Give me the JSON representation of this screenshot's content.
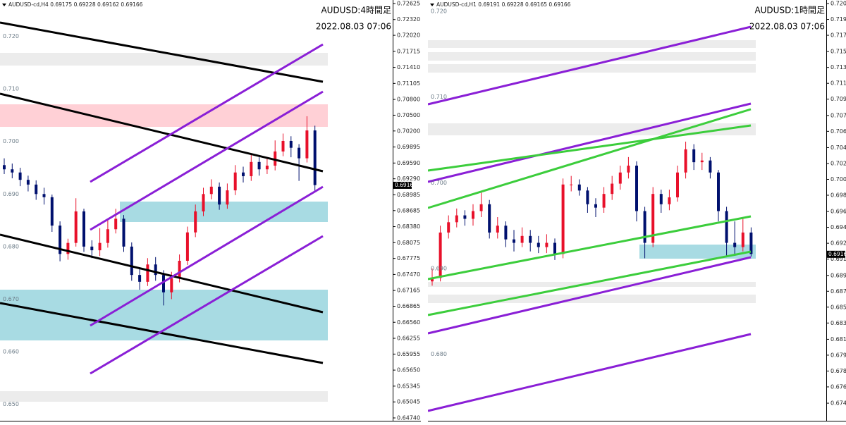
{
  "chart_data": [
    {
      "type": "candlestick",
      "header": "AUDUSD-cd,H4  0.69175 0.69228 0.69162 0.69166",
      "title": "AUDUSD:4時間足",
      "subtitle": "2022.08.03 07:06",
      "ylim": [
        0.64686,
        0.72665
      ],
      "yticks": [
        0.72625,
        {
          "value": 0.7232,
          "label": "0.72320"
        },
        {
          "value": 0.7202,
          "label": "0.72020"
        },
        0.71715,
        {
          "value": 0.7141,
          "label": "0.71410"
        },
        0.71105,
        {
          "value": 0.708,
          "label": "0.70800"
        },
        {
          "value": 0.705,
          "label": "0.70500"
        },
        {
          "value": 0.702,
          "label": "0.70200"
        },
        0.69895,
        {
          "value": 0.6959,
          "label": "0.69590"
        },
        {
          "value": 0.6929,
          "label": "0.69290"
        },
        0.68985,
        0.68685,
        {
          "value": 0.6838,
          "label": "0.68380"
        },
        0.68075,
        0.67775,
        {
          "value": 0.6747,
          "label": "0.67470"
        },
        0.67165,
        0.66865,
        {
          "value": 0.6656,
          "label": "0.66560"
        },
        0.66255,
        0.65955,
        {
          "value": 0.6565,
          "label": "0.65650"
        },
        0.65345,
        0.65045,
        {
          "value": 0.6474,
          "label": "0.64740"
        }
      ],
      "levels": [
        {
          "value": 0.72,
          "label": "0.720"
        },
        {
          "value": 0.71,
          "label": "0.710"
        },
        {
          "value": 0.7,
          "label": "0.700"
        },
        {
          "value": 0.69,
          "label": "0.690"
        },
        {
          "value": 0.68,
          "label": "0.680"
        },
        {
          "value": 0.67,
          "label": "0.670"
        },
        {
          "value": 0.66,
          "label": "0.660"
        },
        {
          "value": 0.65,
          "label": "0.650"
        }
      ],
      "last_price": 0.69166,
      "up_color": "#e8102a",
      "down_color": "#00106e",
      "open": [
        0.6955,
        0.6947,
        0.6941,
        0.6927,
        0.6918,
        0.69,
        0.6894,
        0.684,
        0.6786,
        0.6807,
        0.6867,
        0.68,
        0.6793,
        0.6807,
        0.6833,
        0.6853,
        0.68,
        0.6746,
        0.6733,
        0.6766,
        0.6746,
        0.6713,
        0.674,
        0.6773,
        0.6827,
        0.6867,
        0.69,
        0.6914,
        0.688,
        0.6907,
        0.6941,
        0.6934,
        0.6961,
        0.6947,
        0.6954,
        0.6981,
        0.7001,
        0.6988,
        0.6968,
        0.7021
      ],
      "high": [
        0.6968,
        0.6958,
        0.695,
        0.6935,
        0.6926,
        0.6912,
        0.6899,
        0.6848,
        0.6815,
        0.6892,
        0.6872,
        0.6812,
        0.6835,
        0.685,
        0.6872,
        0.686,
        0.6808,
        0.676,
        0.6778,
        0.678,
        0.6755,
        0.6752,
        0.6785,
        0.6838,
        0.688,
        0.6912,
        0.6928,
        0.6922,
        0.692,
        0.6955,
        0.6952,
        0.6975,
        0.697,
        0.6968,
        0.7002,
        0.7015,
        0.701,
        0.6995,
        0.7048,
        0.703
      ],
      "low": [
        0.6938,
        0.693,
        0.6915,
        0.6905,
        0.6889,
        0.688,
        0.6828,
        0.6772,
        0.6775,
        0.68,
        0.679,
        0.6778,
        0.6782,
        0.6798,
        0.6825,
        0.679,
        0.6735,
        0.6718,
        0.6725,
        0.6735,
        0.6688,
        0.67,
        0.6732,
        0.6765,
        0.6818,
        0.6858,
        0.689,
        0.687,
        0.6872,
        0.6898,
        0.6922,
        0.6925,
        0.6935,
        0.6938,
        0.6945,
        0.6972,
        0.697,
        0.6925,
        0.696,
        0.6905
      ],
      "close": [
        0.6947,
        0.6941,
        0.6927,
        0.6918,
        0.69,
        0.6894,
        0.684,
        0.6786,
        0.6807,
        0.6867,
        0.68,
        0.6793,
        0.6807,
        0.6833,
        0.6853,
        0.68,
        0.6746,
        0.6733,
        0.6766,
        0.6746,
        0.6713,
        0.674,
        0.6773,
        0.6827,
        0.6867,
        0.69,
        0.6914,
        0.688,
        0.6907,
        0.6941,
        0.6934,
        0.6961,
        0.6947,
        0.6954,
        0.6981,
        0.7001,
        0.6988,
        0.6968,
        0.7021,
        0.6917
      ]
    },
    {
      "type": "candlestick",
      "header": "AUDUSD-cd,H1  0.69191 0.69228 0.69165 0.69166",
      "title": "AUDUSD:1時間足",
      "subtitle": "2022.08.03 07:06",
      "ylim": [
        0.67225,
        0.72115
      ],
      "yticks": [
        {
          "value": 0.7209,
          "label": "0.72090"
        },
        0.71905,
        {
          "value": 0.7172,
          "label": "0.71720"
        },
        {
          "value": 0.7153,
          "label": "0.71530"
        },
        0.71345,
        {
          "value": 0.7116,
          "label": "0.71160"
        },
        0.70975,
        0.70785,
        {
          "value": 0.706,
          "label": "0.70600"
        },
        {
          "value": 0.7041,
          "label": "0.70410"
        },
        0.70225,
        {
          "value": 0.7004,
          "label": "0.70040"
        },
        0.69855,
        0.69665,
        {
          "value": 0.6948,
          "label": "0.69480"
        },
        0.69295,
        {
          "value": 0.6911,
          "label": "0.69110"
        },
        {
          "value": 0.6892,
          "label": "0.68920"
        },
        0.68735,
        {
          "value": 0.6855,
          "label": "0.68550"
        },
        0.68365,
        0.68175,
        {
          "value": 0.6799,
          "label": "0.67990"
        },
        0.67805,
        {
          "value": 0.6762,
          "label": "0.67620"
        },
        {
          "value": 0.6743,
          "label": "0.67430"
        }
      ],
      "levels": [
        {
          "value": 0.72,
          "label": "0.720"
        },
        {
          "value": 0.71,
          "label": "0.710"
        },
        {
          "value": 0.7,
          "label": "0.700"
        },
        {
          "value": 0.69,
          "label": "0.690"
        },
        {
          "value": 0.68,
          "label": "0.680"
        }
      ],
      "last_price": 0.69166,
      "up_color": "#e8102a",
      "down_color": "#00106e",
      "open": [
        0.6885,
        0.6889,
        0.6942,
        0.6954,
        0.6962,
        0.6958,
        0.6967,
        0.6975,
        0.6942,
        0.695,
        0.6934,
        0.693,
        0.6938,
        0.693,
        0.6925,
        0.693,
        0.6917,
        0.6998,
        0.6998,
        0.6991,
        0.6975,
        0.6971,
        0.6987,
        0.6999,
        0.7012,
        0.702,
        0.6967,
        0.693,
        0.6987,
        0.6975,
        0.6983,
        0.7012,
        0.7039,
        0.7024,
        0.7026,
        0.7012,
        0.6967,
        0.693,
        0.6925,
        0.6942
      ],
      "high": [
        0.69,
        0.695,
        0.6962,
        0.697,
        0.6968,
        0.6975,
        0.699,
        0.698,
        0.696,
        0.6955,
        0.6945,
        0.6948,
        0.6945,
        0.6938,
        0.694,
        0.6935,
        0.7005,
        0.7008,
        0.7004,
        0.6995,
        0.6982,
        0.6995,
        0.7008,
        0.702,
        0.703,
        0.7025,
        0.6972,
        0.6995,
        0.6992,
        0.6992,
        0.702,
        0.7048,
        0.7045,
        0.7035,
        0.703,
        0.7015,
        0.6972,
        0.6955,
        0.6958,
        0.6948
      ],
      "low": [
        0.688,
        0.6885,
        0.6935,
        0.6948,
        0.695,
        0.695,
        0.696,
        0.6935,
        0.6935,
        0.6925,
        0.692,
        0.6925,
        0.692,
        0.6918,
        0.6918,
        0.691,
        0.6912,
        0.699,
        0.6985,
        0.6965,
        0.696,
        0.6965,
        0.698,
        0.6992,
        0.7005,
        0.6955,
        0.6912,
        0.6925,
        0.6965,
        0.6968,
        0.6978,
        0.7005,
        0.7015,
        0.7015,
        0.7005,
        0.6955,
        0.6915,
        0.6915,
        0.692,
        0.6914
      ],
      "close": [
        0.6889,
        0.6942,
        0.6954,
        0.6962,
        0.6958,
        0.6967,
        0.6975,
        0.6942,
        0.695,
        0.6934,
        0.693,
        0.6938,
        0.693,
        0.6925,
        0.693,
        0.6917,
        0.6998,
        0.6998,
        0.6991,
        0.6975,
        0.6971,
        0.6987,
        0.6999,
        0.7012,
        0.702,
        0.6967,
        0.693,
        0.6987,
        0.6975,
        0.6983,
        0.7012,
        0.7039,
        0.7024,
        0.7026,
        0.7012,
        0.6967,
        0.693,
        0.6925,
        0.6942,
        0.6917
      ]
    }
  ]
}
